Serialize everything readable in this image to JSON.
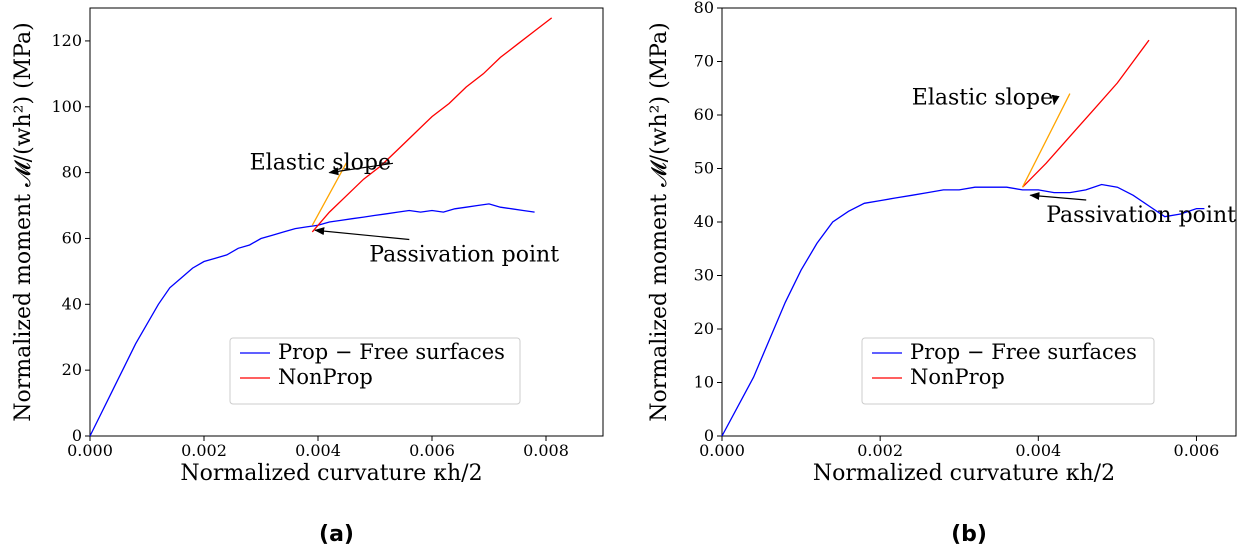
{
  "chart_data": [
    {
      "type": "line",
      "panel_label": "(a)",
      "xlabel": "Normalized curvature κh/2",
      "ylabel": "Normalized moment 𝓜/(wh²) (MPa)",
      "xlim": [
        0,
        0.009
      ],
      "ylim": [
        0,
        130
      ],
      "xticks": [
        0,
        0.002,
        0.004,
        0.006,
        0.008
      ],
      "xtick_labels": [
        "0.000",
        "0.002",
        "0.004",
        "0.006",
        "0.008"
      ],
      "yticks": [
        0,
        20,
        40,
        60,
        80,
        100,
        120
      ],
      "ytick_labels": [
        "0",
        "20",
        "40",
        "60",
        "80",
        "100",
        "120"
      ],
      "grid": false,
      "legend_position": "bottom-right",
      "series": [
        {
          "name": "Prop − Free surfaces",
          "color": "#0000ff",
          "x": [
            0,
            0.0002,
            0.0004,
            0.0006,
            0.0008,
            0.001,
            0.0012,
            0.0014,
            0.0016,
            0.0018,
            0.002,
            0.0022,
            0.0024,
            0.0026,
            0.0028,
            0.003,
            0.0032,
            0.0034,
            0.0036,
            0.0038,
            0.004,
            0.0042,
            0.0044,
            0.0046,
            0.0048,
            0.005,
            0.0052,
            0.0054,
            0.0056,
            0.0058,
            0.006,
            0.0062,
            0.0064,
            0.0066,
            0.0068,
            0.007,
            0.0072,
            0.0074,
            0.0076,
            0.0078
          ],
          "y": [
            0,
            7,
            14,
            21,
            28,
            34,
            40,
            45,
            48,
            51,
            53,
            54,
            55,
            57,
            58,
            60,
            61,
            62,
            63,
            63.5,
            64,
            65,
            65.5,
            66,
            66.5,
            67,
            67.5,
            68,
            68.5,
            68,
            68.5,
            68,
            69,
            69.5,
            70,
            70.5,
            69.5,
            69,
            68.5,
            68
          ]
        },
        {
          "name": "NonProp",
          "color": "#ff0000",
          "x": [
            0.0039,
            0.0042,
            0.0045,
            0.0048,
            0.0051,
            0.0054,
            0.0057,
            0.006,
            0.0063,
            0.0066,
            0.0069,
            0.0072,
            0.0075,
            0.0078,
            0.0081
          ],
          "y": [
            62,
            68,
            73,
            78,
            82,
            87,
            92,
            97,
            101,
            106,
            110,
            115,
            119,
            123,
            127
          ]
        },
        {
          "name": "",
          "color": "#ffa500",
          "x": [
            0.0039,
            0.0045
          ],
          "y": [
            64,
            83
          ]
        }
      ],
      "annotations": [
        {
          "text": "Elastic slope",
          "text_xy": [
            0.0028,
            81
          ],
          "arrow_to": [
            0.0042,
            80
          ]
        },
        {
          "text": "Passivation point",
          "text_xy": [
            0.0049,
            53
          ],
          "arrow_to": [
            0.00395,
            62.5
          ]
        }
      ]
    },
    {
      "type": "line",
      "panel_label": "(b)",
      "xlabel": "Normalized curvature κh/2",
      "ylabel": "Normalized moment 𝓜/(wh²) (MPa)",
      "xlim": [
        0,
        0.0065
      ],
      "ylim": [
        0,
        80
      ],
      "xticks": [
        0,
        0.002,
        0.004,
        0.006
      ],
      "xtick_labels": [
        "0.000",
        "0.002",
        "0.004",
        "0.006"
      ],
      "yticks": [
        0,
        10,
        20,
        30,
        40,
        50,
        60,
        70,
        80
      ],
      "ytick_labels": [
        "0",
        "10",
        "20",
        "30",
        "40",
        "50",
        "60",
        "70",
        "80"
      ],
      "grid": false,
      "legend_position": "bottom-right",
      "series": [
        {
          "name": "Prop − Free surfaces",
          "color": "#0000ff",
          "x": [
            0,
            0.0002,
            0.0004,
            0.0006,
            0.0008,
            0.001,
            0.0012,
            0.0014,
            0.0016,
            0.0018,
            0.002,
            0.0022,
            0.0024,
            0.0026,
            0.0028,
            0.003,
            0.0032,
            0.0034,
            0.0036,
            0.0038,
            0.004,
            0.0042,
            0.0044,
            0.0046,
            0.0048,
            0.005,
            0.0052,
            0.0054,
            0.0056,
            0.0058,
            0.006,
            0.0061
          ],
          "y": [
            0,
            5.5,
            11,
            18,
            25,
            31,
            36,
            40,
            42,
            43.5,
            44,
            44.5,
            45,
            45.5,
            46,
            46,
            46.5,
            46.5,
            46.5,
            46,
            46,
            45.5,
            45.5,
            46,
            47,
            46.5,
            45,
            43,
            41,
            41.5,
            42.5,
            42.5
          ]
        },
        {
          "name": "NonProp",
          "color": "#ff0000",
          "x": [
            0.0038,
            0.0041,
            0.0044,
            0.0047,
            0.005,
            0.0052,
            0.0054
          ],
          "y": [
            46.5,
            51,
            56,
            61,
            66,
            70,
            74
          ]
        },
        {
          "name": "",
          "color": "#ffa500",
          "x": [
            0.0038,
            0.0044
          ],
          "y": [
            46.5,
            64
          ]
        }
      ],
      "annotations": [
        {
          "text": "Elastic slope",
          "text_xy": [
            0.0024,
            62
          ],
          "arrow_to": [
            0.0042,
            62
          ]
        },
        {
          "text": "Passivation point",
          "text_xy": [
            0.0041,
            40
          ],
          "arrow_to": [
            0.0039,
            45
          ]
        }
      ]
    }
  ]
}
